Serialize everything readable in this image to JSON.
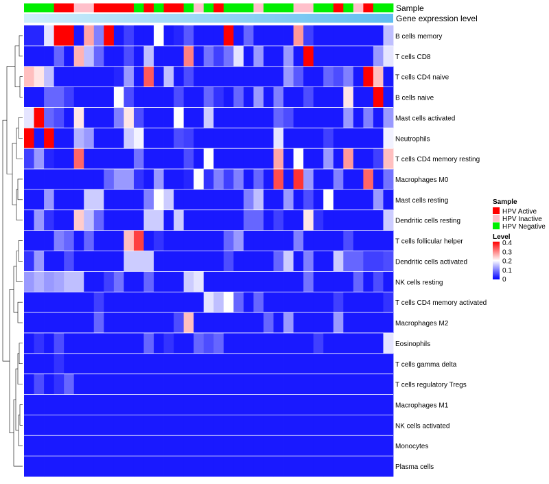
{
  "chart_data": {
    "type": "heatmap",
    "annotation_tracks": [
      "Sample",
      "Gene expression level"
    ],
    "rows": [
      "B cells memory",
      "T cells CD8",
      "T cells CD4 naive",
      "B cells naive",
      "Mast cells activated",
      "Neutrophils",
      "T cells CD4 memory resting",
      "Macrophages M0",
      "Mast cells resting",
      "Dendritic cells resting",
      "T cells follicular helper",
      "Dendritic cells activated",
      "NK cells resting",
      "T cells CD4 memory activated",
      "Macrophages M2",
      "Eosinophils",
      "T cells gamma delta",
      "T cells regulatory  Tregs",
      "Macrophages M1",
      "NK cells activated",
      "Monocytes",
      "Plasma cells"
    ],
    "sample_groups": [
      "Negative",
      "Negative",
      "Negative",
      "Active",
      "Active",
      "Inactive",
      "Inactive",
      "Active",
      "Active",
      "Active",
      "Active",
      "Negative",
      "Active",
      "Negative",
      "Active",
      "Active",
      "Negative",
      "Inactive",
      "Negative",
      "Active",
      "Negative",
      "Negative",
      "Negative",
      "Inactive",
      "Negative",
      "Negative",
      "Negative",
      "Inactive",
      "Inactive",
      "Negative",
      "Negative",
      "Active",
      "Negative",
      "Inactive",
      "Active",
      "Negative",
      "Negative"
    ],
    "expression_gradient": [
      "#cfeefb",
      "#5fbdf0"
    ],
    "legend": {
      "sample_title": "Sample",
      "entries": [
        {
          "label": "HPV Active",
          "color": "#ff0000"
        },
        {
          "label": "HPV Inactive",
          "color": "#ffc0cb"
        },
        {
          "label": "HPV Negative",
          "color": "#00ee00"
        }
      ],
      "level_title": "Level",
      "level_ticks": [
        "0.4",
        "0.3",
        "0.2",
        "0.1",
        "0"
      ],
      "level_colors": [
        "#ff0000",
        "#ffffff",
        "#0000ff"
      ],
      "level_range": [
        0,
        0.4
      ]
    },
    "values": [
      [
        0.03,
        0.03,
        0.18,
        0.4,
        0.4,
        0.02,
        0.27,
        0.1,
        0.4,
        0.02,
        0.05,
        0.02,
        0.02,
        0.2,
        0.02,
        0.03,
        0.07,
        0.02,
        0.02,
        0.02,
        0.4,
        0.02,
        0.08,
        0.02,
        0.02,
        0.02,
        0.02,
        0.28,
        0.05,
        0.02,
        0.02,
        0.02,
        0.02,
        0.02,
        0.02,
        0.02,
        0.15
      ],
      [
        0.02,
        0.02,
        0.02,
        0.08,
        0.02,
        0.26,
        0.15,
        0.08,
        0.02,
        0.02,
        0.06,
        0.02,
        0.15,
        0.02,
        0.02,
        0.02,
        0.3,
        0.02,
        0.09,
        0.05,
        0.09,
        0.18,
        0.02,
        0.12,
        0.02,
        0.02,
        0.12,
        0.02,
        0.4,
        0.02,
        0.02,
        0.02,
        0.02,
        0.02,
        0.02,
        0.12,
        0.18
      ],
      [
        0.25,
        0.22,
        0.15,
        0.02,
        0.02,
        0.02,
        0.02,
        0.02,
        0.02,
        0.03,
        0.12,
        0.02,
        0.33,
        0.02,
        0.15,
        0.02,
        0.06,
        0.02,
        0.02,
        0.02,
        0.02,
        0.02,
        0.02,
        0.02,
        0.02,
        0.02,
        0.12,
        0.07,
        0.02,
        0.02,
        0.08,
        0.06,
        0.1,
        0.02,
        0.4,
        0.25,
        0.02
      ],
      [
        0.02,
        0.02,
        0.08,
        0.08,
        0.05,
        0.02,
        0.02,
        0.02,
        0.02,
        0.2,
        0.06,
        0.02,
        0.02,
        0.02,
        0.02,
        0.06,
        0.02,
        0.02,
        0.08,
        0.04,
        0.02,
        0.08,
        0.02,
        0.12,
        0.02,
        0.1,
        0.02,
        0.02,
        0.06,
        0.02,
        0.02,
        0.02,
        0.22,
        0.02,
        0.02,
        0.4,
        0.02
      ],
      [
        0.18,
        0.4,
        0.08,
        0.06,
        0.02,
        0.22,
        0.02,
        0.02,
        0.02,
        0.1,
        0.22,
        0.06,
        0.02,
        0.02,
        0.02,
        0.2,
        0.02,
        0.02,
        0.16,
        0.02,
        0.02,
        0.02,
        0.02,
        0.02,
        0.02,
        0.08,
        0.06,
        0.02,
        0.02,
        0.02,
        0.02,
        0.02,
        0.12,
        0.02,
        0.1,
        0.02,
        0.12
      ],
      [
        0.4,
        0.02,
        0.4,
        0.02,
        0.02,
        0.14,
        0.12,
        0.02,
        0.02,
        0.02,
        0.16,
        0.19,
        0.02,
        0.02,
        0.02,
        0.06,
        0.05,
        0.02,
        0.02,
        0.02,
        0.02,
        0.02,
        0.02,
        0.02,
        0.02,
        0.18,
        0.02,
        0.02,
        0.02,
        0.02,
        0.05,
        0.02,
        0.02,
        0.02,
        0.02,
        0.02,
        0.19
      ],
      [
        0.05,
        0.12,
        0.03,
        0.02,
        0.02,
        0.32,
        0.02,
        0.02,
        0.02,
        0.02,
        0.02,
        0.09,
        0.02,
        0.02,
        0.02,
        0.02,
        0.06,
        0.02,
        0.2,
        0.02,
        0.02,
        0.02,
        0.02,
        0.02,
        0.02,
        0.27,
        0.02,
        0.2,
        0.02,
        0.02,
        0.12,
        0.02,
        0.28,
        0.02,
        0.02,
        0.05,
        0.25
      ],
      [
        0.02,
        0.02,
        0.02,
        0.02,
        0.02,
        0.02,
        0.02,
        0.02,
        0.08,
        0.12,
        0.12,
        0.04,
        0.02,
        0.12,
        0.02,
        0.02,
        0.03,
        0.2,
        0.04,
        0.1,
        0.05,
        0.1,
        0.02,
        0.08,
        0.02,
        0.34,
        0.02,
        0.36,
        0.12,
        0.02,
        0.02,
        0.1,
        0.02,
        0.02,
        0.32,
        0.02,
        0.09
      ],
      [
        0.02,
        0.02,
        0.12,
        0.02,
        0.02,
        0.02,
        0.16,
        0.16,
        0.02,
        0.02,
        0.02,
        0.02,
        0.1,
        0.2,
        0.16,
        0.02,
        0.02,
        0.02,
        0.02,
        0.02,
        0.02,
        0.02,
        0.1,
        0.15,
        0.02,
        0.02,
        0.12,
        0.02,
        0.06,
        0.02,
        0.2,
        0.02,
        0.02,
        0.02,
        0.02,
        0.12,
        0.02
      ],
      [
        0.02,
        0.12,
        0.04,
        0.02,
        0.02,
        0.24,
        0.15,
        0.08,
        0.02,
        0.02,
        0.02,
        0.02,
        0.16,
        0.16,
        0.02,
        0.16,
        0.02,
        0.02,
        0.02,
        0.02,
        0.02,
        0.02,
        0.08,
        0.08,
        0.02,
        0.05,
        0.02,
        0.02,
        0.22,
        0.04,
        0.02,
        0.02,
        0.02,
        0.02,
        0.02,
        0.02,
        0.16
      ],
      [
        0.02,
        0.02,
        0.02,
        0.1,
        0.08,
        0.02,
        0.08,
        0.02,
        0.02,
        0.02,
        0.25,
        0.35,
        0.02,
        0.04,
        0.02,
        0.02,
        0.02,
        0.02,
        0.02,
        0.02,
        0.08,
        0.12,
        0.02,
        0.02,
        0.02,
        0.02,
        0.02,
        0.1,
        0.02,
        0.02,
        0.02,
        0.02,
        0.06,
        0.02,
        0.02,
        0.02,
        0.02
      ],
      [
        0.04,
        0.12,
        0.02,
        0.02,
        0.06,
        0.02,
        0.02,
        0.02,
        0.02,
        0.02,
        0.16,
        0.16,
        0.16,
        0.02,
        0.02,
        0.02,
        0.02,
        0.02,
        0.02,
        0.02,
        0.06,
        0.02,
        0.02,
        0.02,
        0.02,
        0.08,
        0.16,
        0.02,
        0.1,
        0.02,
        0.02,
        0.16,
        0.08,
        0.08,
        0.05,
        0.05,
        0.06
      ],
      [
        0.12,
        0.14,
        0.12,
        0.13,
        0.15,
        0.15,
        0.02,
        0.02,
        0.05,
        0.09,
        0.02,
        0.02,
        0.08,
        0.02,
        0.02,
        0.02,
        0.16,
        0.18,
        0.02,
        0.02,
        0.02,
        0.02,
        0.02,
        0.02,
        0.02,
        0.02,
        0.02,
        0.02,
        0.09,
        0.02,
        0.02,
        0.02,
        0.02,
        0.08,
        0.02,
        0.06,
        0.02
      ],
      [
        0.02,
        0.02,
        0.02,
        0.02,
        0.02,
        0.02,
        0.02,
        0.05,
        0.02,
        0.02,
        0.02,
        0.02,
        0.02,
        0.02,
        0.02,
        0.02,
        0.02,
        0.02,
        0.18,
        0.15,
        0.2,
        0.08,
        0.02,
        0.08,
        0.02,
        0.02,
        0.02,
        0.02,
        0.02,
        0.02,
        0.02,
        0.05,
        0.02,
        0.02,
        0.02,
        0.02,
        0.04
      ],
      [
        0.02,
        0.02,
        0.02,
        0.02,
        0.02,
        0.02,
        0.02,
        0.08,
        0.02,
        0.02,
        0.02,
        0.02,
        0.02,
        0.02,
        0.02,
        0.06,
        0.25,
        0.02,
        0.02,
        0.02,
        0.02,
        0.02,
        0.02,
        0.02,
        0.08,
        0.02,
        0.12,
        0.02,
        0.02,
        0.02,
        0.02,
        0.12,
        0.02,
        0.02,
        0.02,
        0.02,
        0.02
      ],
      [
        0.02,
        0.04,
        0.02,
        0.06,
        0.02,
        0.02,
        0.02,
        0.02,
        0.02,
        0.02,
        0.02,
        0.02,
        0.08,
        0.02,
        0.04,
        0.02,
        0.02,
        0.08,
        0.06,
        0.08,
        0.02,
        0.02,
        0.02,
        0.02,
        0.02,
        0.02,
        0.02,
        0.02,
        0.02,
        0.05,
        0.02,
        0.02,
        0.02,
        0.02,
        0.02,
        0.02,
        0.18
      ],
      [
        0.02,
        0.02,
        0.02,
        0.04,
        0.02,
        0.02,
        0.02,
        0.02,
        0.02,
        0.02,
        0.02,
        0.02,
        0.02,
        0.02,
        0.02,
        0.02,
        0.02,
        0.02,
        0.02,
        0.02,
        0.02,
        0.02,
        0.02,
        0.02,
        0.02,
        0.02,
        0.02,
        0.02,
        0.02,
        0.02,
        0.02,
        0.02,
        0.02,
        0.02,
        0.02,
        0.02,
        0.02
      ],
      [
        0.02,
        0.06,
        0.02,
        0.04,
        0.08,
        0.02,
        0.02,
        0.02,
        0.02,
        0.02,
        0.02,
        0.02,
        0.02,
        0.02,
        0.02,
        0.02,
        0.02,
        0.02,
        0.02,
        0.02,
        0.02,
        0.02,
        0.02,
        0.02,
        0.02,
        0.02,
        0.02,
        0.02,
        0.02,
        0.02,
        0.02,
        0.02,
        0.02,
        0.02,
        0.02,
        0.02,
        0.02
      ],
      [
        0.02,
        0.02,
        0.02,
        0.02,
        0.02,
        0.02,
        0.02,
        0.02,
        0.02,
        0.02,
        0.02,
        0.02,
        0.02,
        0.02,
        0.02,
        0.02,
        0.02,
        0.02,
        0.02,
        0.02,
        0.02,
        0.02,
        0.02,
        0.02,
        0.02,
        0.02,
        0.02,
        0.02,
        0.02,
        0.02,
        0.02,
        0.02,
        0.02,
        0.02,
        0.02,
        0.02,
        0.02
      ],
      [
        0.02,
        0.02,
        0.02,
        0.02,
        0.02,
        0.02,
        0.02,
        0.02,
        0.02,
        0.02,
        0.02,
        0.02,
        0.02,
        0.02,
        0.02,
        0.02,
        0.02,
        0.02,
        0.02,
        0.02,
        0.02,
        0.02,
        0.02,
        0.02,
        0.02,
        0.02,
        0.02,
        0.02,
        0.02,
        0.02,
        0.02,
        0.02,
        0.02,
        0.02,
        0.02,
        0.02,
        0.02
      ],
      [
        0.02,
        0.02,
        0.02,
        0.02,
        0.02,
        0.02,
        0.02,
        0.02,
        0.02,
        0.02,
        0.02,
        0.02,
        0.02,
        0.02,
        0.02,
        0.02,
        0.02,
        0.02,
        0.02,
        0.02,
        0.02,
        0.02,
        0.02,
        0.02,
        0.02,
        0.02,
        0.02,
        0.02,
        0.02,
        0.02,
        0.02,
        0.02,
        0.02,
        0.02,
        0.02,
        0.02,
        0.02
      ],
      [
        0.02,
        0.02,
        0.02,
        0.02,
        0.02,
        0.02,
        0.02,
        0.02,
        0.02,
        0.02,
        0.02,
        0.02,
        0.02,
        0.02,
        0.02,
        0.02,
        0.02,
        0.02,
        0.02,
        0.02,
        0.02,
        0.02,
        0.02,
        0.02,
        0.02,
        0.02,
        0.02,
        0.02,
        0.02,
        0.02,
        0.02,
        0.02,
        0.02,
        0.02,
        0.02,
        0.02,
        0.02
      ]
    ]
  }
}
